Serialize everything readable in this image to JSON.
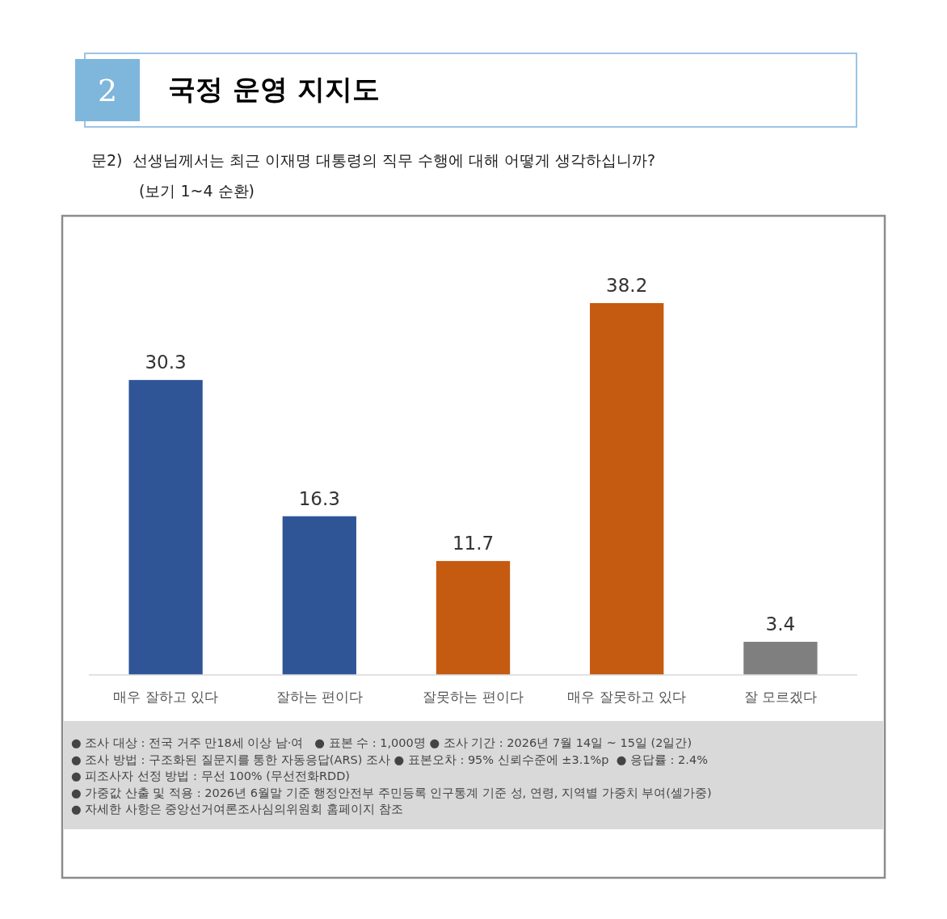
{
  "chart_data": {
    "type": "bar",
    "title": "국정 운영 지지도",
    "subtitle": "문2)  선생님께서는 최근 이재명 대통령의 직무 수행에 대해 어떻게 생각하십니까?\n(보기 1~4 순환)",
    "categories": [
      "매우 잘하고 있다",
      "잘하는 편이다",
      "잘못하는 편이다",
      "매우 잘못하고 있다",
      "잘 모르겠다"
    ],
    "values": [
      30.3,
      16.3,
      11.7,
      38.2,
      3.4
    ],
    "colors": [
      "#2f5597",
      "#2f5597",
      "#c55a11",
      "#c55a11",
      "#7f7f7f"
    ],
    "data_labels": true,
    "annotations": [
      "2",
      "● 조사 대상 : 전국 거주 만18세 이상 남·여   ● 표본 수 : 1,000명 ● 조사 기간 : 2026년 7월 14일 ~ 15일 (2일간)",
      "● 조사 방법 : 구조화된 질문지를 통한 자동응답(ARS) 조사 ● 표본오차 : 95% 신뢰수준에 ±3.1%p  ● 응답률 : 2.4%",
      "● 피조사자 선정 방법 : 무선 100% (무선전화RDD)",
      "● 가중값 산출 및 적용 : 2026년 6월말 기준 행정안전부 주민등록 인구통계 기준 성, 연령, 지역별 가중치 부여(셀가중)",
      "● 자세한 사항은 중앙선거여론조사심의위원회 홈페이지 참조"
    ]
  }
}
